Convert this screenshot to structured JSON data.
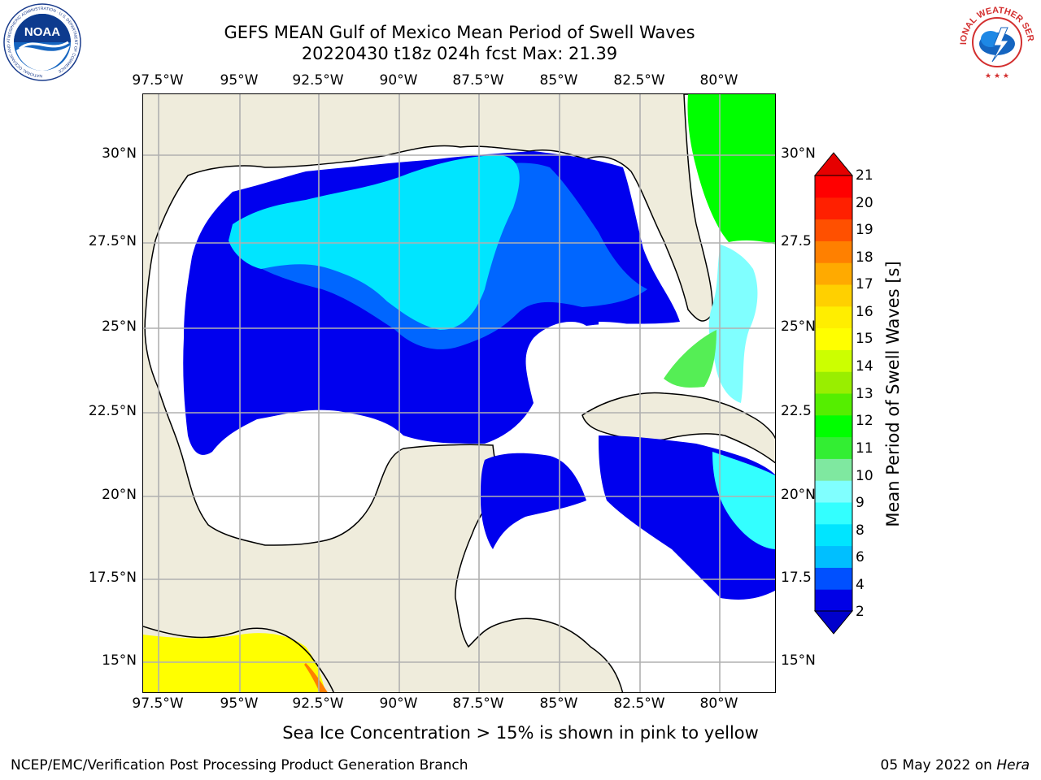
{
  "title": {
    "line1": "GEFS MEAN Gulf of Mexico Mean Period of Swell Waves",
    "line2": "20220430 t18z 024h fcst   Max: 21.39"
  },
  "logos": {
    "left_icon": "noaa-logo-icon",
    "right_icon": "national-weather-service-logo-icon",
    "left_text": "NOAA",
    "left_ring_text": "NATIONAL OCEANIC AND ATMOSPHERIC ADMINISTRATION · U.S. DEPARTMENT OF COMMERCE",
    "right_ring_text": "NATIONAL WEATHER SERVICE"
  },
  "map": {
    "region": "Gulf of Mexico",
    "lon_labels": [
      "97.5°W",
      "95°W",
      "92.5°W",
      "90°W",
      "87.5°W",
      "85°W",
      "82.5°W",
      "80°W"
    ],
    "lat_labels_left": [
      "30°N",
      "27.5°N",
      "25°N",
      "22.5°N",
      "20°N",
      "17.5°N",
      "15°N"
    ],
    "lat_labels_right": [
      "30°N",
      "27.5",
      "25°N",
      "22.5",
      "20°N",
      "17.5",
      "15°N"
    ],
    "land_color": "#efecdc",
    "ocean_nodata_color": "#ffffff",
    "gridline_color": "#b0b0b0",
    "coastline_color": "#000000"
  },
  "colorbar": {
    "label": "Mean Period of Swell Waves [s]",
    "tick_labels": [
      "2",
      "4",
      "6",
      "8",
      "9",
      "10",
      "11",
      "12",
      "13",
      "14",
      "15",
      "16",
      "17",
      "18",
      "19",
      "20",
      "21"
    ],
    "colors_bottom_to_top": [
      "#0000e6",
      "#0050ff",
      "#00bfff",
      "#00e5ff",
      "#33ffff",
      "#80ffff",
      "#7fe8a0",
      "#33ee33",
      "#00ff00",
      "#55ee00",
      "#99ee00",
      "#ccff00",
      "#ffff00",
      "#ffee00",
      "#ffd000",
      "#ffaa00",
      "#ff8000",
      "#ff5000",
      "#ff2000",
      "#ff0000"
    ],
    "under_color": "#0000cc",
    "over_color": "#e60000"
  },
  "ice_note": "Sea Ice Concentration > 15% is shown in pink to yellow",
  "footer": {
    "left": "NCEP/EMC/Verification Post Processing Product Generation Branch",
    "date": "05 May 2022 on ",
    "machine": "Hera"
  }
}
